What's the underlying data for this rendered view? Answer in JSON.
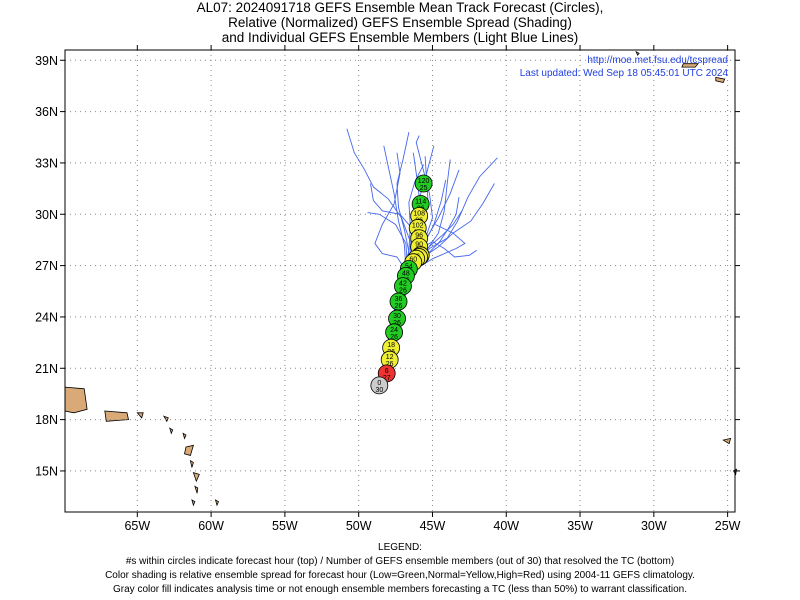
{
  "title": {
    "line1": "AL07: 2024091718 GEFS Ensemble Mean Track Forecast (Circles),",
    "line2": "Relative (Normalized) GEFS Ensemble Spread (Shading)",
    "line3": "and Individual GEFS Ensemble Members (Light Blue Lines)"
  },
  "credit": {
    "url": "http://moe.met.fsu.edu/tcspread",
    "updated": "Last updated: Wed Sep 18 05:45:01 UTC 2024"
  },
  "axes": {
    "lat_labels": [
      "39N",
      "36N",
      "33N",
      "30N",
      "27N",
      "24N",
      "21N",
      "18N",
      "15N"
    ],
    "lat_values": [
      39,
      36,
      33,
      30,
      27,
      24,
      21,
      18,
      15
    ],
    "lon_labels": [
      "65W",
      "60W",
      "55W",
      "50W",
      "45W",
      "40W",
      "35W",
      "30W",
      "25W"
    ],
    "lon_values": [
      -65,
      -60,
      -55,
      -50,
      -45,
      -40,
      -35,
      -30,
      -25
    ],
    "lon_range": [
      -69.9,
      -24.5
    ],
    "lat_range": [
      12.6,
      39.6
    ],
    "grid": "dotted"
  },
  "colors": {
    "green": "#22cc22",
    "yellow": "#eeee33",
    "red": "#ee3333",
    "gray": "#cccccc",
    "member_track": "#4466ee",
    "land": "#d9aa77"
  },
  "mean_track": [
    {
      "hour": "0",
      "members": "30",
      "lon": -48.6,
      "lat": 20.0,
      "spread": "gray"
    },
    {
      "hour": "6",
      "members": "27",
      "lon": -48.1,
      "lat": 20.7,
      "spread": "red"
    },
    {
      "hour": "12",
      "members": "26",
      "lon": -47.9,
      "lat": 21.5,
      "spread": "yellow"
    },
    {
      "hour": "18",
      "members": "26",
      "lon": -47.8,
      "lat": 22.2,
      "spread": "yellow"
    },
    {
      "hour": "24",
      "members": "26",
      "lon": -47.6,
      "lat": 23.1,
      "spread": "green"
    },
    {
      "hour": "30",
      "members": "26",
      "lon": -47.4,
      "lat": 23.9,
      "spread": "green"
    },
    {
      "hour": "36",
      "members": "26",
      "lon": -47.3,
      "lat": 24.9,
      "spread": "green"
    },
    {
      "hour": "42",
      "members": "26",
      "lon": -47.0,
      "lat": 25.8,
      "spread": "green"
    },
    {
      "hour": "48",
      "members": "26",
      "lon": -46.8,
      "lat": 26.4,
      "spread": "green"
    },
    {
      "hour": "54",
      "members": "26",
      "lon": -46.6,
      "lat": 26.8,
      "spread": "green"
    },
    {
      "hour": "60",
      "members": "26",
      "lon": -46.3,
      "lat": 27.2,
      "spread": "yellow"
    },
    {
      "hour": "66",
      "members": "26",
      "lon": -46.1,
      "lat": 27.4,
      "spread": "yellow"
    },
    {
      "hour": "72",
      "members": "26",
      "lon": -45.9,
      "lat": 27.5,
      "spread": "yellow"
    },
    {
      "hour": "78",
      "members": "26",
      "lon": -45.8,
      "lat": 27.6,
      "spread": "yellow"
    },
    {
      "hour": "84",
      "members": "26",
      "lon": -45.8,
      "lat": 27.6,
      "spread": "yellow"
    },
    {
      "hour": "90",
      "members": "26",
      "lon": -45.9,
      "lat": 28.1,
      "spread": "yellow"
    },
    {
      "hour": "96",
      "members": "26",
      "lon": -45.9,
      "lat": 28.6,
      "spread": "yellow"
    },
    {
      "hour": "102",
      "members": "26",
      "lon": -46.0,
      "lat": 29.2,
      "spread": "yellow"
    },
    {
      "hour": "108",
      "members": "26",
      "lon": -45.9,
      "lat": 29.9,
      "spread": "yellow"
    },
    {
      "hour": "114",
      "members": "26",
      "lon": -45.8,
      "lat": 30.6,
      "spread": "green"
    },
    {
      "hour": "120",
      "members": "25",
      "lon": -45.6,
      "lat": 31.8,
      "spread": "green"
    }
  ],
  "member_tracks": [
    [
      [
        -48.6,
        20.0
      ],
      [
        -48.2,
        21.0
      ],
      [
        -47.9,
        22.6
      ],
      [
        -47.6,
        24.2
      ],
      [
        -47.2,
        25.6
      ],
      [
        -46.8,
        26.8
      ],
      [
        -46.9,
        28.2
      ],
      [
        -47.3,
        29.6
      ],
      [
        -47.6,
        31.2
      ],
      [
        -48.0,
        32.8
      ],
      [
        -48.3,
        34.0
      ]
    ],
    [
      [
        -48.6,
        20.0
      ],
      [
        -48.1,
        21.2
      ],
      [
        -47.8,
        22.8
      ],
      [
        -47.4,
        24.4
      ],
      [
        -47.0,
        25.8
      ],
      [
        -46.4,
        27.0
      ],
      [
        -45.9,
        28.6
      ],
      [
        -45.8,
        30.2
      ],
      [
        -46.0,
        31.8
      ],
      [
        -46.3,
        33.6
      ]
    ],
    [
      [
        -48.6,
        20.0
      ],
      [
        -48.0,
        21.2
      ],
      [
        -47.7,
        22.8
      ],
      [
        -47.3,
        24.5
      ],
      [
        -46.8,
        25.9
      ],
      [
        -46.2,
        27.1
      ],
      [
        -45.6,
        28.3
      ],
      [
        -45.0,
        29.8
      ],
      [
        -45.2,
        31.2
      ],
      [
        -46.1,
        34.2
      ],
      [
        -45.9,
        34.6
      ]
    ],
    [
      [
        -48.6,
        20.0
      ],
      [
        -48.0,
        21.4
      ],
      [
        -47.6,
        23.0
      ],
      [
        -47.2,
        24.6
      ],
      [
        -46.6,
        26.0
      ],
      [
        -46.0,
        27.2
      ],
      [
        -45.2,
        28.0
      ],
      [
        -44.0,
        28.6
      ],
      [
        -43.3,
        29.6
      ],
      [
        -42.6,
        31.0
      ],
      [
        -41.8,
        32.2
      ],
      [
        -40.6,
        33.3
      ]
    ],
    [
      [
        -48.6,
        20.0
      ],
      [
        -48.2,
        21.3
      ],
      [
        -47.8,
        22.9
      ],
      [
        -47.4,
        24.4
      ],
      [
        -46.9,
        25.7
      ],
      [
        -46.1,
        26.8
      ],
      [
        -45.0,
        27.4
      ],
      [
        -43.4,
        28.0
      ],
      [
        -42.8,
        28.3
      ],
      [
        -43.6,
        28.9
      ],
      [
        -44.8,
        29.4
      ]
    ],
    [
      [
        -48.6,
        20.0
      ],
      [
        -48.0,
        21.5
      ],
      [
        -47.6,
        23.1
      ],
      [
        -47.2,
        24.7
      ],
      [
        -46.7,
        26.1
      ],
      [
        -46.0,
        27.4
      ],
      [
        -45.4,
        28.6
      ],
      [
        -44.6,
        29.8
      ],
      [
        -43.8,
        31.2
      ],
      [
        -43.2,
        32.6
      ]
    ],
    [
      [
        -48.6,
        20.0
      ],
      [
        -48.3,
        21.2
      ],
      [
        -48.0,
        22.6
      ],
      [
        -47.6,
        24.1
      ],
      [
        -47.2,
        25.5
      ],
      [
        -46.8,
        26.7
      ],
      [
        -47.4,
        27.5
      ],
      [
        -48.4,
        27.7
      ],
      [
        -48.9,
        28.3
      ],
      [
        -48.4,
        29.4
      ],
      [
        -47.6,
        30.6
      ],
      [
        -47.2,
        32.4
      ],
      [
        -47.4,
        33.6
      ]
    ],
    [
      [
        -48.6,
        20.0
      ],
      [
        -48.1,
        21.0
      ],
      [
        -47.7,
        22.5
      ],
      [
        -47.3,
        24.0
      ],
      [
        -46.9,
        25.4
      ],
      [
        -46.4,
        26.6
      ],
      [
        -45.6,
        27.5
      ],
      [
        -44.6,
        28.1
      ],
      [
        -43.6,
        28.9
      ],
      [
        -42.4,
        29.6
      ],
      [
        -41.6,
        30.6
      ],
      [
        -40.8,
        31.8
      ]
    ],
    [
      [
        -48.6,
        20.0
      ],
      [
        -48.2,
        21.4
      ],
      [
        -47.9,
        23.0
      ],
      [
        -47.5,
        24.5
      ],
      [
        -47.0,
        25.9
      ],
      [
        -46.6,
        27.1
      ],
      [
        -46.2,
        28.4
      ],
      [
        -46.0,
        29.6
      ],
      [
        -45.9,
        30.9
      ],
      [
        -45.4,
        32.4
      ],
      [
        -44.9,
        34.0
      ]
    ],
    [
      [
        -48.6,
        20.0
      ],
      [
        -48.0,
        21.3
      ],
      [
        -47.7,
        22.9
      ],
      [
        -47.3,
        24.4
      ],
      [
        -46.9,
        25.8
      ],
      [
        -46.5,
        27.0
      ],
      [
        -46.5,
        28.4
      ],
      [
        -47.1,
        29.8
      ],
      [
        -48.0,
        30.9
      ],
      [
        -49.0,
        31.6
      ],
      [
        -49.6,
        32.6
      ],
      [
        -50.3,
        33.6
      ],
      [
        -50.8,
        35.0
      ]
    ],
    [
      [
        -48.6,
        20.0
      ],
      [
        -48.1,
        21.1
      ],
      [
        -47.8,
        22.7
      ],
      [
        -47.5,
        24.3
      ],
      [
        -47.1,
        25.7
      ],
      [
        -46.6,
        26.9
      ],
      [
        -46.0,
        27.9
      ],
      [
        -45.0,
        28.4
      ],
      [
        -44.2,
        28.0
      ],
      [
        -43.5,
        27.5
      ],
      [
        -42.5,
        27.6
      ],
      [
        -42.0,
        27.9
      ]
    ],
    [
      [
        -48.6,
        20.0
      ],
      [
        -48.3,
        21.0
      ],
      [
        -48.0,
        22.4
      ],
      [
        -47.6,
        23.9
      ],
      [
        -47.2,
        25.3
      ],
      [
        -46.8,
        26.5
      ],
      [
        -46.6,
        27.8
      ],
      [
        -46.9,
        29.1
      ],
      [
        -47.3,
        30.4
      ],
      [
        -47.4,
        31.8
      ],
      [
        -47.0,
        33.2
      ],
      [
        -46.6,
        34.8
      ]
    ],
    [
      [
        -48.6,
        20.0
      ],
      [
        -48.0,
        21.3
      ],
      [
        -47.6,
        22.9
      ],
      [
        -47.3,
        24.4
      ],
      [
        -46.8,
        25.8
      ],
      [
        -46.2,
        26.9
      ],
      [
        -45.4,
        27.9
      ],
      [
        -44.6,
        28.9
      ],
      [
        -44.2,
        30.2
      ],
      [
        -44.0,
        31.8
      ],
      [
        -43.8,
        33.2
      ]
    ],
    [
      [
        -48.6,
        20.0
      ],
      [
        -48.2,
        21.5
      ],
      [
        -47.9,
        23.1
      ],
      [
        -47.5,
        24.6
      ],
      [
        -47.0,
        26.0
      ],
      [
        -46.5,
        27.2
      ],
      [
        -46.2,
        28.4
      ],
      [
        -46.4,
        29.2
      ],
      [
        -47.2,
        30.0
      ],
      [
        -48.4,
        30.2
      ],
      [
        -49.0,
        30.8
      ],
      [
        -49.2,
        31.8
      ]
    ],
    [
      [
        -48.6,
        20.0
      ],
      [
        -48.1,
        21.0
      ],
      [
        -47.8,
        22.6
      ],
      [
        -47.4,
        24.1
      ],
      [
        -47.0,
        25.5
      ],
      [
        -46.5,
        26.7
      ],
      [
        -45.8,
        27.6
      ],
      [
        -45.1,
        28.2
      ],
      [
        -44.3,
        28.8
      ],
      [
        -43.6,
        29.4
      ],
      [
        -43.0,
        30.2
      ]
    ],
    [
      [
        -48.6,
        20.0
      ],
      [
        -48.0,
        21.2
      ],
      [
        -47.7,
        22.8
      ],
      [
        -47.3,
        24.3
      ],
      [
        -46.9,
        25.7
      ],
      [
        -46.4,
        26.9
      ],
      [
        -46.0,
        28.1
      ],
      [
        -45.7,
        29.4
      ],
      [
        -45.3,
        30.8
      ],
      [
        -45.4,
        32.0
      ],
      [
        -45.5,
        33.4
      ]
    ],
    [
      [
        -48.6,
        20.0
      ],
      [
        -48.2,
        21.3
      ],
      [
        -47.9,
        22.9
      ],
      [
        -47.5,
        24.4
      ],
      [
        -47.1,
        25.8
      ],
      [
        -46.7,
        27.0
      ],
      [
        -46.8,
        28.3
      ],
      [
        -47.5,
        29.4
      ],
      [
        -48.6,
        30.0
      ],
      [
        -49.4,
        30.1
      ]
    ],
    [
      [
        -48.6,
        20.0
      ],
      [
        -48.1,
        21.4
      ],
      [
        -47.8,
        23.0
      ],
      [
        -47.4,
        24.5
      ],
      [
        -46.9,
        25.9
      ],
      [
        -46.3,
        27.1
      ],
      [
        -45.6,
        28.2
      ],
      [
        -44.9,
        29.4
      ],
      [
        -44.4,
        30.8
      ],
      [
        -44.1,
        32.0
      ]
    ],
    [
      [
        -48.6,
        20.0
      ],
      [
        -48.3,
        21.1
      ],
      [
        -48.0,
        22.5
      ],
      [
        -47.7,
        24.0
      ],
      [
        -47.3,
        25.4
      ],
      [
        -46.9,
        26.7
      ],
      [
        -46.6,
        27.9
      ],
      [
        -46.5,
        29.3
      ],
      [
        -46.6,
        30.7
      ],
      [
        -46.2,
        31.9
      ],
      [
        -45.6,
        32.9
      ]
    ],
    [
      [
        -48.6,
        20.0
      ],
      [
        -48.0,
        21.2
      ],
      [
        -47.7,
        22.8
      ],
      [
        -47.2,
        24.3
      ],
      [
        -46.7,
        25.6
      ],
      [
        -46.1,
        26.8
      ],
      [
        -45.3,
        27.7
      ],
      [
        -44.5,
        28.4
      ],
      [
        -43.9,
        29.2
      ],
      [
        -43.4,
        30.0
      ],
      [
        -43.2,
        31.0
      ]
    ]
  ],
  "legend": {
    "heading": "LEGEND:",
    "line1": "#s within circles indicate forecast hour (top) / Number of GEFS ensemble members (out of 30) that resolved the TC (bottom)",
    "line2": "Color shading is relative ensemble spread for forecast hour (Low=Green,Normal=Yellow,High=Red) using 2004-11 GEFS climatology.",
    "line3": "Gray color fill indicates analysis time or not enough ensemble members forecasting a TC (less than 50%) to warrant classification."
  }
}
